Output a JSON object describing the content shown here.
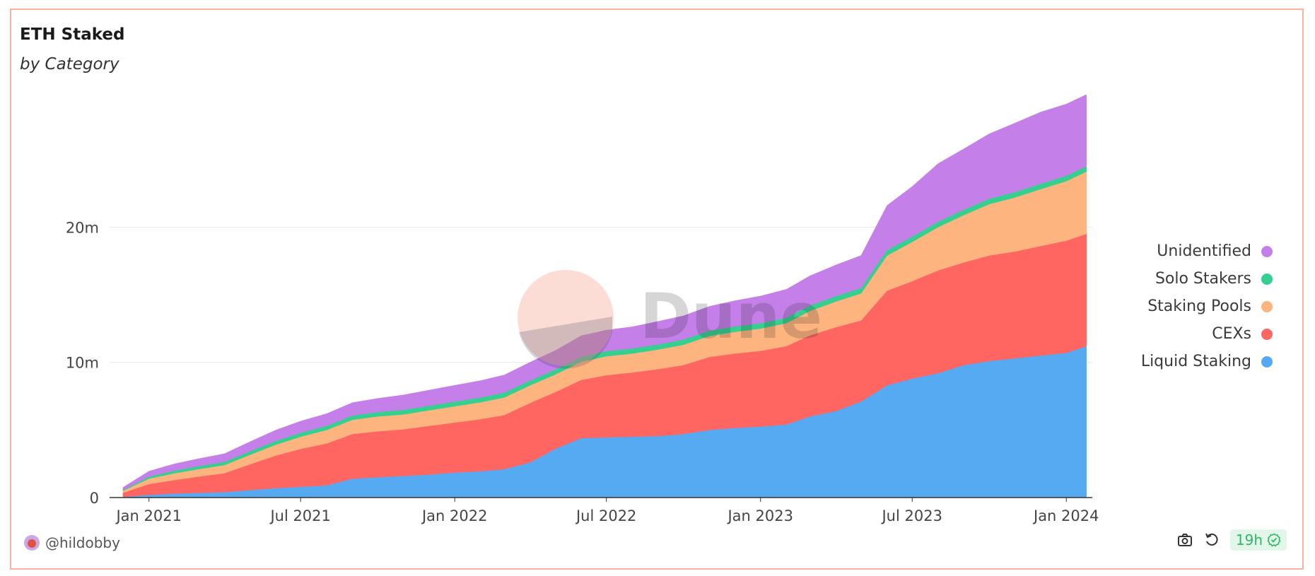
{
  "header": {
    "title": "ETH Staked",
    "subtitle": "by Category"
  },
  "watermark": "Dune",
  "footer": {
    "author": "@hildobby",
    "refresh_age": "19h"
  },
  "icons": {
    "camera": "camera-icon",
    "refresh": "refresh-icon",
    "check": "check-circle-icon",
    "avatar": "avatar-icon"
  },
  "colors": {
    "liquid_staking": "#55aaf2",
    "cexs": "#ff6661",
    "staking_pools": "#fdb47e",
    "solo_stakers": "#35d08f",
    "unidentified": "#c47fe8",
    "card_border": "#f6b3a2"
  },
  "chart_data": {
    "type": "area",
    "stacked": true,
    "title": "ETH Staked",
    "subtitle": "by Category",
    "xlabel": "",
    "ylabel": "",
    "ylim": [
      0,
      30000000
    ],
    "xlim": [
      "2020-11-15",
      "2024-02-01"
    ],
    "x_ticks": [
      "Jan 2021",
      "Jul 2021",
      "Jan 2022",
      "Jul 2022",
      "Jan 2023",
      "Jul 2023",
      "Jan 2024"
    ],
    "x_tick_dates": [
      "2021-01-01",
      "2021-07-01",
      "2022-01-01",
      "2022-07-01",
      "2023-01-01",
      "2023-07-01",
      "2024-01-01"
    ],
    "y_ticks": [
      "0",
      "10m",
      "20m"
    ],
    "y_tick_values": [
      0,
      10000000,
      20000000
    ],
    "grid": true,
    "legend_position": "right",
    "x": [
      "2020-12-01",
      "2021-01-01",
      "2021-02-01",
      "2021-03-01",
      "2021-04-01",
      "2021-05-01",
      "2021-06-01",
      "2021-07-01",
      "2021-08-01",
      "2021-09-01",
      "2021-10-01",
      "2021-11-01",
      "2021-12-01",
      "2022-01-01",
      "2022-02-01",
      "2022-03-01",
      "2022-04-01",
      "2022-05-01",
      "2022-06-01",
      "2022-07-01",
      "2022-08-01",
      "2022-09-01",
      "2022-10-01",
      "2022-11-01",
      "2022-12-01",
      "2023-01-01",
      "2023-02-01",
      "2023-03-01",
      "2023-04-01",
      "2023-05-01",
      "2023-06-01",
      "2023-07-01",
      "2023-08-01",
      "2023-09-01",
      "2023-10-01",
      "2023-11-01",
      "2023-12-01",
      "2024-01-01",
      "2024-01-25"
    ],
    "series": [
      {
        "name": "Liquid Staking",
        "color": "#55aaf2",
        "values": [
          0.05,
          0.2,
          0.3,
          0.35,
          0.4,
          0.55,
          0.7,
          0.8,
          0.9,
          1.4,
          1.5,
          1.6,
          1.7,
          1.85,
          1.95,
          2.1,
          2.6,
          3.6,
          4.4,
          4.45,
          4.5,
          4.55,
          4.7,
          5.0,
          5.15,
          5.25,
          5.4,
          6.0,
          6.4,
          7.1,
          8.3,
          8.8,
          9.2,
          9.8,
          10.1,
          10.3,
          10.5,
          10.7,
          11.2
        ]
      },
      {
        "name": "CEXs",
        "color": "#ff6661",
        "values": [
          0.3,
          0.8,
          1.0,
          1.2,
          1.4,
          1.9,
          2.4,
          2.8,
          3.1,
          3.3,
          3.4,
          3.45,
          3.6,
          3.7,
          3.85,
          4.0,
          4.4,
          4.2,
          4.3,
          4.6,
          4.75,
          4.95,
          5.1,
          5.4,
          5.5,
          5.6,
          5.8,
          6.0,
          6.2,
          6.0,
          7.0,
          7.2,
          7.6,
          7.6,
          7.8,
          7.9,
          8.1,
          8.3,
          8.3
        ]
      },
      {
        "name": "Staking Pools",
        "color": "#fdb47e",
        "values": [
          0.15,
          0.4,
          0.5,
          0.55,
          0.6,
          0.7,
          0.8,
          0.9,
          1.0,
          1.05,
          1.1,
          1.1,
          1.15,
          1.2,
          1.25,
          1.3,
          1.3,
          1.3,
          1.35,
          1.4,
          1.4,
          1.45,
          1.5,
          1.55,
          1.6,
          1.65,
          1.7,
          1.8,
          1.9,
          2.0,
          2.6,
          2.9,
          3.2,
          3.5,
          3.8,
          4.0,
          4.2,
          4.4,
          4.6
        ]
      },
      {
        "name": "Solo Stakers",
        "color": "#35d08f",
        "values": [
          0.05,
          0.15,
          0.2,
          0.22,
          0.24,
          0.26,
          0.28,
          0.3,
          0.3,
          0.32,
          0.33,
          0.34,
          0.34,
          0.35,
          0.35,
          0.36,
          0.36,
          0.37,
          0.37,
          0.38,
          0.38,
          0.38,
          0.39,
          0.39,
          0.4,
          0.4,
          0.4,
          0.4,
          0.4,
          0.4,
          0.4,
          0.4,
          0.4,
          0.4,
          0.4,
          0.4,
          0.4,
          0.4,
          0.4
        ]
      },
      {
        "name": "Unidentified",
        "color": "#c47fe8",
        "values": [
          0.2,
          0.4,
          0.5,
          0.55,
          0.6,
          0.7,
          0.8,
          0.85,
          0.9,
          0.95,
          1.0,
          1.1,
          1.15,
          1.2,
          1.25,
          1.3,
          1.35,
          1.4,
          1.55,
          1.55,
          1.6,
          1.7,
          1.75,
          1.8,
          1.9,
          2.0,
          2.1,
          2.2,
          2.3,
          2.4,
          3.3,
          3.7,
          4.3,
          4.5,
          4.8,
          5.1,
          5.3,
          5.3,
          5.3
        ]
      }
    ],
    "value_unit_multiplier": 1000000
  }
}
